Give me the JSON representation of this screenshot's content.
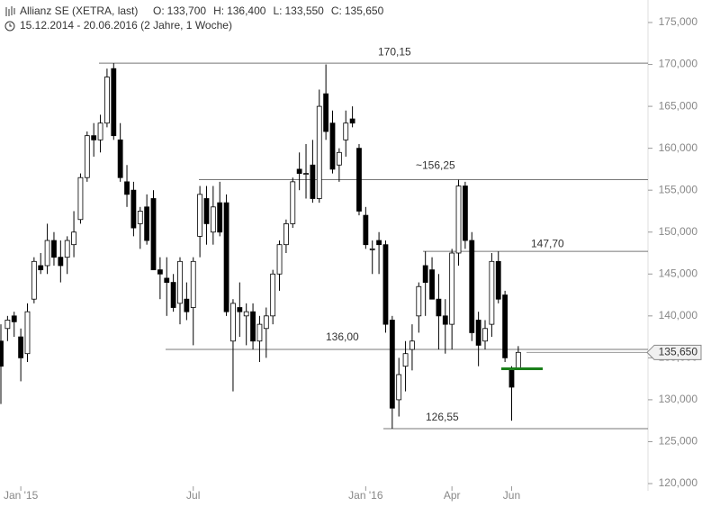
{
  "chart_data": {
    "type": "candlestick",
    "header": {
      "name": "Allianz SE (XETRA, last)",
      "quote": [
        {
          "label": "O:",
          "value": 133700,
          "value_label": "133,700"
        },
        {
          "label": "H:",
          "value": 136400,
          "value_label": "136,400"
        },
        {
          "label": "L:",
          "value": 133550,
          "value_label": "133,550"
        },
        {
          "label": "C:",
          "value": 135650,
          "value_label": "135,650"
        }
      ],
      "period": "15.12.2014 - 20.06.2016 (2 Jahre, 1 Woche)"
    },
    "categories": [
      null,
      null,
      null,
      "Jan '15",
      null,
      null,
      null,
      null,
      null,
      null,
      null,
      null,
      null,
      null,
      null,
      null,
      null,
      null,
      null,
      null,
      null,
      null,
      null,
      null,
      null,
      null,
      null,
      null,
      null,
      "Jul",
      null,
      null,
      null,
      null,
      null,
      null,
      null,
      null,
      null,
      null,
      null,
      null,
      null,
      null,
      null,
      null,
      null,
      null,
      null,
      null,
      null,
      null,
      null,
      null,
      null,
      "Jan '16",
      null,
      null,
      null,
      null,
      null,
      null,
      null,
      null,
      null,
      null,
      null,
      null,
      "Apr",
      null,
      null,
      null,
      null,
      null,
      null,
      null,
      null,
      "Jun",
      null
    ],
    "open": [
      137000,
      138500,
      140000,
      137500,
      135500,
      142000,
      146000,
      146000,
      149000,
      147000,
      147000,
      148500,
      151500,
      156500,
      161500,
      161000,
      163000,
      169500,
      161000,
      156000,
      155000,
      151000,
      153000,
      154000,
      145500,
      144500,
      144000,
      141500,
      142000,
      141000,
      149500,
      154000,
      150000,
      153500,
      153500,
      137000,
      141000,
      140000,
      140500,
      137000,
      138500,
      140000,
      145000,
      148500,
      151000,
      157500,
      157000,
      158000,
      154000,
      166500,
      163000,
      158000,
      161000,
      163500,
      160000,
      152000,
      148000,
      149000,
      148500,
      139500,
      130000,
      134000,
      136000,
      140000,
      146000,
      145500,
      142000,
      140000,
      139000,
      147500,
      155500,
      149000,
      139500,
      137000,
      139000,
      146500,
      142500,
      133500,
      133700
    ],
    "high": [
      139000,
      140000,
      140500,
      138500,
      141500,
      147000,
      147500,
      151000,
      150000,
      149000,
      149500,
      152500,
      157000,
      162000,
      163000,
      164000,
      169500,
      170150,
      163000,
      158000,
      156000,
      153000,
      154500,
      155000,
      147000,
      147000,
      145000,
      147000,
      144000,
      147000,
      155500,
      155500,
      155500,
      156000,
      154500,
      142000,
      144000,
      141500,
      141500,
      140000,
      141000,
      145500,
      149000,
      151500,
      156500,
      159500,
      160500,
      161000,
      167000,
      170000,
      164500,
      160000,
      164500,
      165000,
      160500,
      153000,
      149000,
      150000,
      149000,
      140000,
      135000,
      137000,
      139000,
      144000,
      147700,
      147000,
      145000,
      142000,
      148000,
      156250,
      156000,
      150000,
      140500,
      139500,
      147500,
      147700,
      143000,
      134000,
      136400
    ],
    "low": [
      129500,
      137000,
      137500,
      132200,
      134500,
      141500,
      145000,
      145000,
      146000,
      144000,
      145000,
      147000,
      151000,
      156000,
      159000,
      159500,
      162500,
      161000,
      156000,
      153000,
      149500,
      148000,
      148500,
      145500,
      142000,
      140000,
      140500,
      139000,
      139500,
      136500,
      147000,
      148500,
      148500,
      149500,
      140000,
      131000,
      137500,
      136500,
      136000,
      134500,
      135000,
      139000,
      143000,
      147500,
      150500,
      155000,
      154000,
      153500,
      153500,
      161000,
      157000,
      156000,
      159000,
      162500,
      152000,
      148000,
      145000,
      145000,
      138000,
      126550,
      128000,
      131000,
      133500,
      138000,
      140000,
      142000,
      136000,
      135500,
      136000,
      146000,
      148000,
      137000,
      134000,
      136000,
      137500,
      141500,
      134500,
      127500,
      133550
    ],
    "close": [
      134000,
      139500,
      139300,
      135000,
      140500,
      146500,
      145500,
      149000,
      147000,
      146000,
      149000,
      150000,
      156500,
      161500,
      161000,
      163000,
      168500,
      161500,
      156500,
      154500,
      150500,
      152500,
      149000,
      145500,
      145000,
      144000,
      141000,
      146500,
      140500,
      146500,
      154500,
      151000,
      153000,
      150000,
      140500,
      141500,
      140500,
      140500,
      137000,
      139000,
      140000,
      145000,
      148500,
      151000,
      156000,
      157000,
      157000,
      154000,
      165000,
      162000,
      157500,
      159500,
      163000,
      163000,
      152500,
      148500,
      148000,
      148500,
      139000,
      129000,
      133000,
      135500,
      137000,
      143500,
      144000,
      142000,
      140000,
      139000,
      147500,
      155500,
      149000,
      138000,
      136500,
      138500,
      146500,
      142000,
      135000,
      131500,
      135650
    ],
    "up_color": "#ffffff",
    "down_color": "#000000",
    "open_line_color": "#1a7f1a",
    "levels": [
      {
        "value": 170150,
        "label": "170,15"
      },
      {
        "value": 156250,
        "label": "~156,25"
      },
      {
        "value": 147700,
        "label": "147,70"
      },
      {
        "value": 136000,
        "label": "136,00"
      },
      {
        "value": 126550,
        "label": "126,55"
      }
    ],
    "ylim": [
      120000,
      175000
    ],
    "yticks": [
      {
        "value": 120000,
        "label": "120,000"
      },
      {
        "value": 125000,
        "label": "125,000"
      },
      {
        "value": 130000,
        "label": "130,000"
      },
      {
        "value": 135000,
        "label": "135,000"
      },
      {
        "value": 140000,
        "label": "140,000"
      },
      {
        "value": 145000,
        "label": "145,000"
      },
      {
        "value": 150000,
        "label": "150,000"
      },
      {
        "value": 155000,
        "label": "155,000"
      },
      {
        "value": 160000,
        "label": "160,000"
      },
      {
        "value": 165000,
        "label": "165,000"
      },
      {
        "value": 170000,
        "label": "170,000"
      },
      {
        "value": 175000,
        "label": "175,000"
      }
    ]
  }
}
